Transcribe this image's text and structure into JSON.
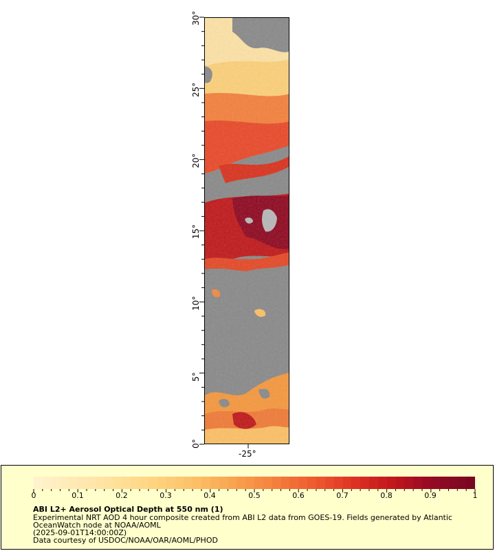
{
  "map": {
    "lat_labels": [
      "30°",
      "25°",
      "20°",
      "15°",
      "10°",
      "5°",
      "0°"
    ],
    "lon_labels": [
      "-25°"
    ],
    "background_color": "#8a8a8a"
  },
  "legend": {
    "ticks": [
      "0",
      "0.1",
      "0.2",
      "0.3",
      "0.4",
      "0.5",
      "0.6",
      "0.7",
      "0.8",
      "0.9",
      "1"
    ],
    "title": "ABI L2+ Aerosol Optical Depth at 550 nm (1)",
    "description_line1": "Experimental NRT AOD 4 hour composite created from ABI L2 data from GOES-19. Fields generated by Atlantic",
    "description_line2": "OceanWatch node at NOAA/AOML",
    "timestamp": "(2025-09-01T14:00:00Z)",
    "credit": "Data courtesy of USDOC/NOAA/OAR/AOML/PHOD",
    "colors": [
      "#fff2cc",
      "#ffe9b3",
      "#ffe09a",
      "#ffd37f",
      "#fcc066",
      "#f9a24f",
      "#f5803d",
      "#ee5b2f",
      "#de3324",
      "#c0161d",
      "#950a24",
      "#7a0722"
    ],
    "background_color": "#ffffcc"
  }
}
